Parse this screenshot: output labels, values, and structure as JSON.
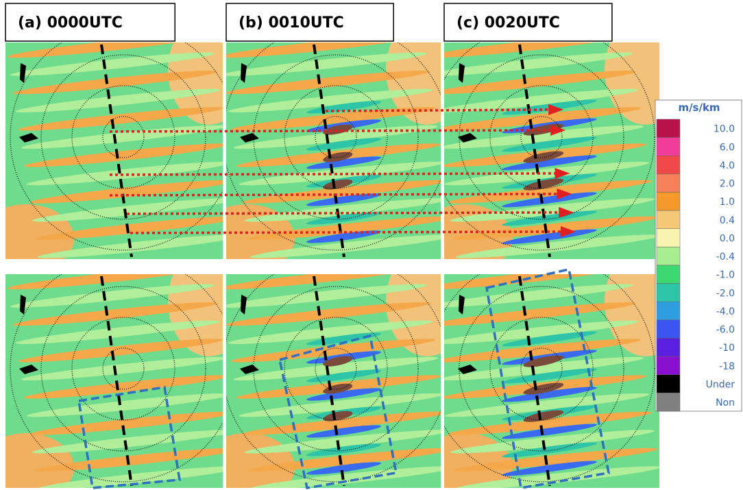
{
  "panels": [
    {
      "label": "(a)  0000UTC"
    },
    {
      "label": "(b)  0010UTC"
    },
    {
      "label": "(c)  0020UTC"
    }
  ],
  "colorbar": {
    "title": "m/s/km",
    "entries": [
      {
        "label": "10.0",
        "color": "#b8134a"
      },
      {
        "label": "6.0",
        "color": "#f23c9a"
      },
      {
        "label": "4.0",
        "color": "#f04848"
      },
      {
        "label": "2.0",
        "color": "#f5815a"
      },
      {
        "label": "1.0",
        "color": "#f59a2a"
      },
      {
        "label": "0.4",
        "color": "#f5c878"
      },
      {
        "label": "0.0",
        "color": "#f8f4b0"
      },
      {
        "label": "-0.4",
        "color": "#a8ee90"
      },
      {
        "label": "-1.0",
        "color": "#3ed870"
      },
      {
        "label": "-2.0",
        "color": "#2ec4a8"
      },
      {
        "label": "-4.0",
        "color": "#2e9ee0"
      },
      {
        "label": "-6.0",
        "color": "#3a55f0"
      },
      {
        "label": "-10",
        "color": "#5a20e0"
      },
      {
        "label": "-18",
        "color": "#8a10d0"
      },
      {
        "label": "Under",
        "color": "#000000"
      },
      {
        "label": "Non",
        "color": "#808080"
      }
    ]
  }
}
